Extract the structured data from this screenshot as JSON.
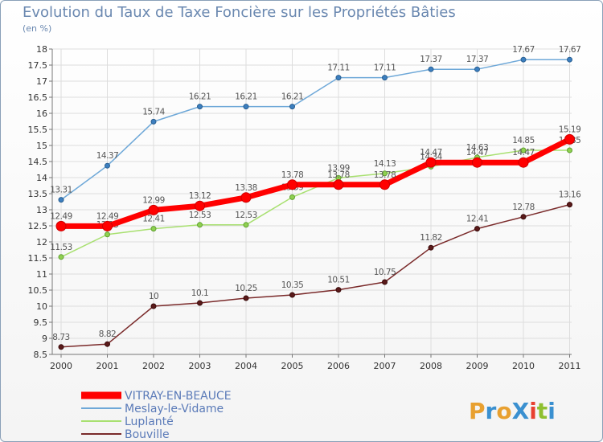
{
  "title": "Evolution du Taux de Taxe Foncière sur les Propriétés Bâties",
  "unit": "(en %)",
  "logo": "ProXiti",
  "colors": {
    "vitray": "#ff0000",
    "meslay": "#6ea8d8",
    "luplante": "#a8e070",
    "bouville": "#7a2a2a",
    "axis": "#777777",
    "grid": "#dddddd",
    "tick_text": "#333333"
  },
  "chart_data": {
    "type": "line",
    "title": "Evolution du Taux de Taxe Foncière sur les Propriétés Bâties",
    "ylabel": "(en %)",
    "xlabel": "",
    "ylim": [
      8.5,
      18
    ],
    "yticks": [
      8.5,
      9,
      9.5,
      10,
      10.5,
      11,
      11.5,
      12,
      12.5,
      13,
      13.5,
      14,
      14.5,
      15,
      15.5,
      16,
      16.5,
      17,
      17.5,
      18
    ],
    "x": [
      "2000",
      "2001",
      "2002",
      "2003",
      "2004",
      "2005",
      "2006",
      "2007",
      "2008",
      "2009",
      "2010",
      "2011"
    ],
    "legend_position": "bottom-left",
    "series": [
      {
        "key": "meslay",
        "name": "Meslay-le-Vidame",
        "values": [
          13.31,
          14.37,
          15.74,
          16.21,
          16.21,
          16.21,
          17.11,
          17.11,
          17.37,
          17.37,
          17.67,
          17.67
        ]
      },
      {
        "key": "luplante",
        "name": "Luplanté",
        "values": [
          11.53,
          12.23,
          12.41,
          12.53,
          12.53,
          13.39,
          13.99,
          14.13,
          14.34,
          14.63,
          14.85,
          14.85
        ]
      },
      {
        "key": "bouville",
        "name": "Bouville",
        "values": [
          8.73,
          8.82,
          10,
          10.1,
          10.25,
          10.35,
          10.51,
          10.75,
          11.82,
          12.41,
          12.78,
          13.16
        ]
      },
      {
        "key": "vitray",
        "name": "VITRAY-EN-BEAUCE",
        "values": [
          12.49,
          12.49,
          12.99,
          13.12,
          13.38,
          13.78,
          13.78,
          13.78,
          14.47,
          14.47,
          14.47,
          15.19
        ]
      }
    ]
  }
}
